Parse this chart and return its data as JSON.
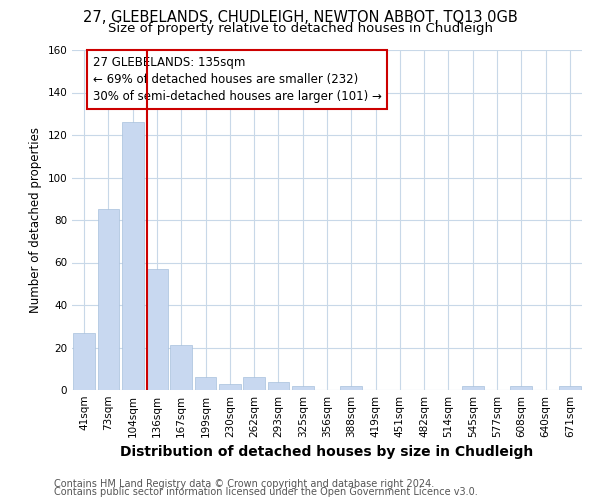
{
  "title": "27, GLEBELANDS, CHUDLEIGH, NEWTON ABBOT, TQ13 0GB",
  "subtitle": "Size of property relative to detached houses in Chudleigh",
  "xlabel": "Distribution of detached houses by size in Chudleigh",
  "ylabel": "Number of detached properties",
  "categories": [
    "41sqm",
    "73sqm",
    "104sqm",
    "136sqm",
    "167sqm",
    "199sqm",
    "230sqm",
    "262sqm",
    "293sqm",
    "325sqm",
    "356sqm",
    "388sqm",
    "419sqm",
    "451sqm",
    "482sqm",
    "514sqm",
    "545sqm",
    "577sqm",
    "608sqm",
    "640sqm",
    "671sqm"
  ],
  "values": [
    27,
    85,
    126,
    57,
    21,
    6,
    3,
    6,
    4,
    2,
    0,
    2,
    0,
    0,
    0,
    0,
    2,
    0,
    2,
    0,
    2
  ],
  "bar_color": "#c8d8f0",
  "bar_edge_color": "#a8c0dc",
  "vline_color": "#cc0000",
  "annotation_line1": "27 GLEBELANDS: 135sqm",
  "annotation_line2": "← 69% of detached houses are smaller (232)",
  "annotation_line3": "30% of semi-detached houses are larger (101) →",
  "annotation_box_color": "#cc0000",
  "ylim": [
    0,
    160
  ],
  "yticks": [
    0,
    20,
    40,
    60,
    80,
    100,
    120,
    140,
    160
  ],
  "footer_line1": "Contains HM Land Registry data © Crown copyright and database right 2024.",
  "footer_line2": "Contains public sector information licensed under the Open Government Licence v3.0.",
  "background_color": "#ffffff",
  "grid_color": "#c8d8e8",
  "title_fontsize": 10.5,
  "subtitle_fontsize": 9.5,
  "xlabel_fontsize": 10,
  "ylabel_fontsize": 8.5,
  "tick_fontsize": 7.5,
  "footer_fontsize": 7,
  "annotation_fontsize": 8.5
}
